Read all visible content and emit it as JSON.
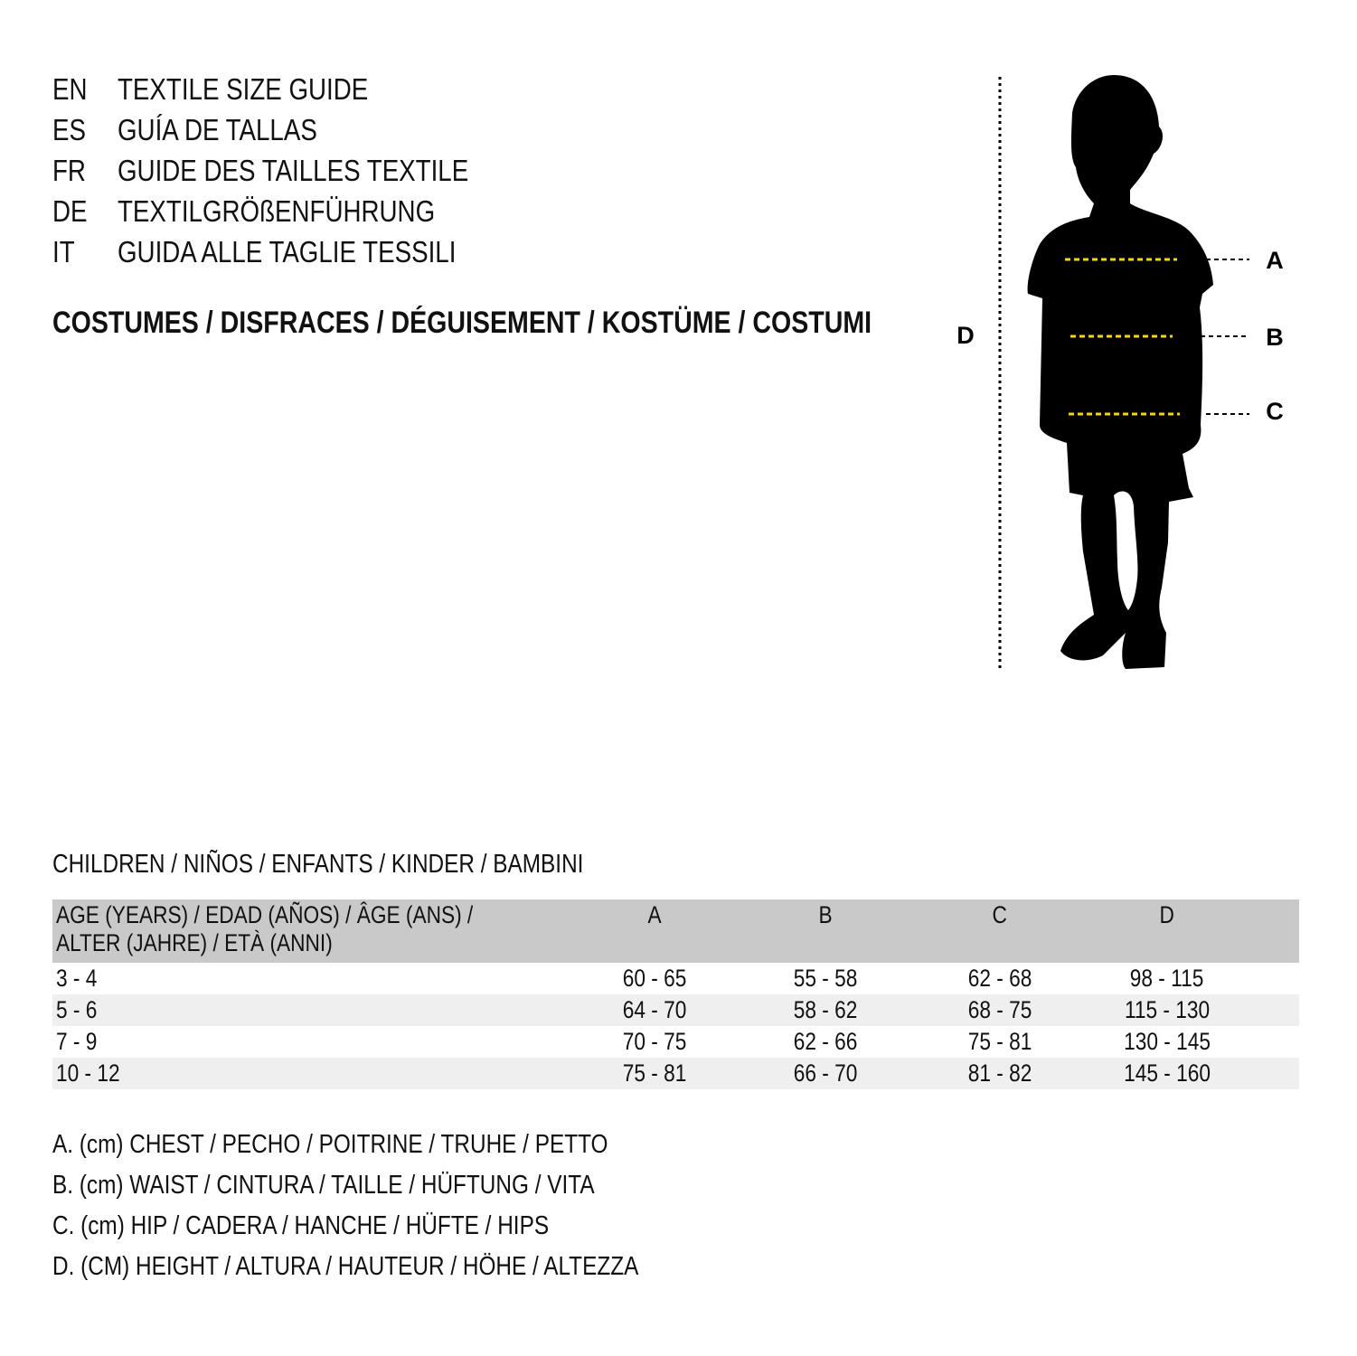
{
  "titles": [
    {
      "code": "EN",
      "text": "TEXTILE SIZE GUIDE"
    },
    {
      "code": "ES",
      "text": "GUÍA DE TALLAS"
    },
    {
      "code": "FR",
      "text": "GUIDE DES TAILLES TEXTILE"
    },
    {
      "code": "DE",
      "text": "TEXTILGRÖßENFÜHRUNG"
    },
    {
      "code": "IT",
      "text": "GUIDA ALLE TAGLIE TESSILI"
    }
  ],
  "category": "COSTUMES / DISFRACES / DÉGUISEMENT / KOSTÜME / COSTUMI",
  "figure": {
    "labels": {
      "a": "A",
      "b": "B",
      "c": "C",
      "d": "D"
    },
    "silhouette": "child-silhouette",
    "measure_line_color": "#f5d800"
  },
  "table": {
    "section_title": "CHILDREN / NIÑOS / ENFANTS / KINDER / BAMBINI",
    "header": {
      "age_line1": "AGE (YEARS) / EDAD (AÑOS) / ÂGE (ANS) /",
      "age_line2": "ALTER (JAHRE) / ETÀ (ANNI)",
      "a": "A",
      "b": "B",
      "c": "C",
      "d": "D"
    },
    "rows": [
      {
        "age": "3 - 4",
        "a": "60 - 65",
        "b": "55 - 58",
        "c": "62 - 68",
        "d": "98 - 115"
      },
      {
        "age": "5 - 6",
        "a": "64 - 70",
        "b": "58 - 62",
        "c": "68 - 75",
        "d": "115 - 130"
      },
      {
        "age": "7 - 9",
        "a": "70 - 75",
        "b": "62 - 66",
        "c": "75 - 81",
        "d": "130 - 145"
      },
      {
        "age": "10 - 12",
        "a": "75 - 81",
        "b": "66 - 70",
        "c": "81 - 82",
        "d": "145 - 160"
      }
    ]
  },
  "legend": [
    "A. (cm) CHEST / PECHO / POITRINE / TRUHE / PETTO",
    "B. (cm) WAIST / CINTURA / TAILLE / HÜFTUNG / VITA",
    "C. (cm) HIP / CADERA / HANCHE / HÜFTE / HIPS",
    "D. (CM) HEIGHT / ALTURA / HAUTEUR / HÖHE / ALTEZZA"
  ]
}
